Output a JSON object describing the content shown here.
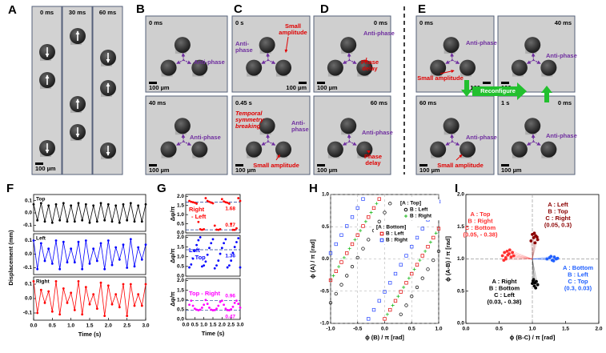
{
  "panel_labels": [
    "A",
    "B",
    "C",
    "D",
    "E",
    "F",
    "G",
    "H",
    "I"
  ],
  "panel_a": {
    "times": [
      "0 ms",
      "30 ms",
      "60 ms"
    ],
    "scale": "100 µm"
  },
  "panel_b": {
    "top": {
      "time": "0 ms",
      "phase": "Anti-phase",
      "scale": "100 µm"
    },
    "bottom": {
      "time": "40 ms",
      "phase": "Anti-phase",
      "scale": "100 µm"
    }
  },
  "panel_c": {
    "top": {
      "time": "0 s",
      "amplitude": [
        "Small",
        "amplitude"
      ],
      "phase": [
        "Anti-",
        "phase"
      ],
      "scale": "100 µm"
    },
    "bottom": {
      "time": "0.45 s",
      "note": [
        "Temporal",
        "symmetry",
        "breaking"
      ],
      "phase": [
        "Anti-",
        "phase"
      ],
      "amplitude": "Small amplitude",
      "scale": "100 µm"
    }
  },
  "panel_d": {
    "top": {
      "time": "0 ms",
      "phase": "Anti-phase",
      "delay": [
        "Phase",
        "delay"
      ],
      "scale": "100 µm"
    },
    "bottom": {
      "time": "60 ms",
      "phase": "Anti-phase",
      "delay": [
        "Phase",
        "delay"
      ],
      "scale": "100 µm"
    }
  },
  "panel_e": {
    "top_left": {
      "time": "0 ms",
      "phase": "Anti-phase",
      "amplitude": "Small amplitude",
      "scale": "100 µm"
    },
    "top_right": {
      "time": "40 ms",
      "phase": "Anti-phase",
      "scale": "100 µm"
    },
    "bottom_left": {
      "time": "60 ms",
      "phase": "Anti-phase",
      "amplitude": "Small amplitude",
      "scale": "100 µm"
    },
    "bottom_right": {
      "time": "1 s",
      "time_end": "0 ms",
      "phase": "Anti-phase",
      "scale": "100 µm"
    },
    "reconfigure": "Reconfigure"
  },
  "chart_data": [
    {
      "type": "line",
      "title": "Top",
      "x": [
        0,
        0.1,
        0.2,
        0.3,
        0.4,
        0.5,
        0.6,
        0.7,
        0.8,
        0.9,
        1,
        1.1,
        1.2,
        1.3,
        1.4,
        1.5,
        1.6,
        1.7,
        1.8,
        1.9,
        2,
        2.1,
        2.2,
        2.3,
        2.4,
        2.5,
        2.6,
        2.7,
        2.8,
        2.9,
        3
      ],
      "xlim": [
        0,
        3
      ],
      "ylim": [
        -0.15,
        0.15
      ],
      "yticks": [
        0.1,
        {
          "value": 0,
          "label": "0.0"
        },
        -0.1
      ],
      "series": [
        {
          "color": "#000000",
          "values": [
            0.07,
            -0.06,
            0.08,
            -0.07,
            0.06,
            -0.08,
            0.07,
            -0.06,
            0.08,
            -0.07,
            0.06,
            -0.07,
            0.08,
            -0.06,
            0.07,
            -0.08,
            0.06,
            -0.07,
            0.08,
            -0.06,
            0.07,
            -0.07,
            0.06,
            -0.08,
            0.07,
            -0.06,
            0.08,
            -0.07,
            0.06,
            -0.07,
            0.07
          ]
        }
      ]
    },
    {
      "type": "line",
      "title": "Left",
      "ylabel": "Displacement (mm)",
      "x": [
        0,
        0.1,
        0.2,
        0.3,
        0.4,
        0.5,
        0.6,
        0.7,
        0.8,
        0.9,
        1,
        1.1,
        1.2,
        1.3,
        1.4,
        1.5,
        1.6,
        1.7,
        1.8,
        1.9,
        2,
        2.1,
        2.2,
        2.3,
        2.4,
        2.5,
        2.6,
        2.7,
        2.8,
        2.9,
        3
      ],
      "xlim": [
        0,
        3
      ],
      "ylim": [
        -0.15,
        0.15
      ],
      "yticks": [
        0.1,
        {
          "value": 0,
          "label": "0.0"
        },
        -0.1
      ],
      "series": [
        {
          "color": "#0000ff",
          "values": [
            0.1,
            -0.11,
            0.08,
            -0.05,
            0.04,
            -0.07,
            0.1,
            -0.11,
            0.09,
            -0.06,
            0.04,
            -0.06,
            0.09,
            -0.11,
            0.1,
            -0.07,
            0.04,
            -0.05,
            0.08,
            -0.11,
            0.1,
            -0.08,
            0.05,
            -0.04,
            0.07,
            -0.1,
            0.11,
            -0.09,
            0.05,
            -0.04,
            0.07
          ]
        }
      ]
    },
    {
      "type": "line",
      "title": "Right",
      "xlabel": "Time (s)",
      "x": [
        0,
        0.1,
        0.2,
        0.3,
        0.4,
        0.5,
        0.6,
        0.7,
        0.8,
        0.9,
        1,
        1.1,
        1.2,
        1.3,
        1.4,
        1.5,
        1.6,
        1.7,
        1.8,
        1.9,
        2,
        2.1,
        2.2,
        2.3,
        2.4,
        2.5,
        2.6,
        2.7,
        2.8,
        2.9,
        3
      ],
      "xlim": [
        0,
        3
      ],
      "ylim": [
        -0.15,
        0.15
      ],
      "yticks": [
        0.1,
        {
          "value": 0,
          "label": "0.0"
        },
        -0.1
      ],
      "xticks": [
        {
          "value": 0,
          "label": "0.0"
        },
        0.5,
        {
          "value": 1,
          "label": "1.0"
        },
        1.5,
        {
          "value": 2,
          "label": "2.0"
        },
        2.5,
        {
          "value": 3,
          "label": "3.0"
        }
      ],
      "series": [
        {
          "color": "#ff0000",
          "values": [
            0.12,
            -0.1,
            0.06,
            -0.03,
            0.05,
            -0.09,
            0.12,
            -0.11,
            0.07,
            -0.03,
            0.04,
            -0.08,
            0.12,
            -0.11,
            0.08,
            -0.04,
            0.03,
            -0.07,
            0.11,
            -0.12,
            0.09,
            -0.04,
            0.03,
            -0.06,
            0.1,
            -0.12,
            0.1,
            -0.05,
            0.03,
            -0.05,
            0.1
          ]
        }
      ]
    },
    {
      "type": "scatter",
      "ylabel": "Δφ/π",
      "label_lines": [
        "Right",
        "- Left"
      ],
      "ref_lines": [
        1.68,
        0.17
      ],
      "ref_color": "#1f3a93",
      "x": [
        0.2,
        0.3,
        0.4,
        0.5,
        0.6,
        0.7,
        0.8,
        0.9,
        1,
        1.1,
        1.2,
        1.3,
        1.4,
        1.5,
        1.6,
        1.7,
        1.8,
        1.9,
        2,
        2.1,
        2.2,
        2.3,
        2.4,
        2.5,
        2.6,
        2.7,
        2.8,
        2.9,
        3
      ],
      "xlim": [
        0,
        3
      ],
      "ylim": [
        0,
        2.1
      ],
      "yticks": [
        {
          "value": 0,
          "label": "0.0"
        },
        0.5,
        {
          "value": 1,
          "label": "1.0"
        },
        1.5,
        {
          "value": 2,
          "label": "2.0"
        }
      ],
      "series": [
        {
          "color": "#ff0000",
          "values": [
            1.75,
            1.7,
            1.68,
            1.65,
            1.6,
            0.6,
            0.2,
            0.17,
            0.2,
            1.9,
            1.75,
            1.7,
            1.66,
            1.62,
            0.4,
            0.18,
            0.17,
            0.2,
            1.85,
            1.72,
            1.68,
            1.65,
            1.6,
            0.5,
            0.17,
            0.17,
            0.25,
            1.9,
            1.75
          ]
        }
      ]
    },
    {
      "type": "scatter",
      "ylabel": "Δφ/π",
      "label_lines": [
        "Left",
        "- Top"
      ],
      "ref_lines": [
        1.36
      ],
      "ref_color": "#1f3a93",
      "x": [
        0.2,
        0.3,
        0.4,
        0.5,
        0.6,
        0.7,
        0.8,
        0.9,
        1,
        1.1,
        1.2,
        1.3,
        1.4,
        1.5,
        1.6,
        1.7,
        1.8,
        1.9,
        2,
        2.1,
        2.2,
        2.3,
        2.4,
        2.5,
        2.6,
        2.7,
        2.8,
        2.9,
        3
      ],
      "xlim": [
        0,
        3
      ],
      "ylim": [
        0,
        2.1
      ],
      "yticks": [
        {
          "value": 0,
          "label": "0.0"
        },
        0.5,
        {
          "value": 1,
          "label": "1.0"
        },
        1.5,
        {
          "value": 2,
          "label": "2.0"
        }
      ],
      "series": [
        {
          "color": "#0000ff",
          "values": [
            0.45,
            0.6,
            0.9,
            1.3,
            1.6,
            1.85,
            2.0,
            0.5,
            0.55,
            0.75,
            1.1,
            1.45,
            1.7,
            1.9,
            0.4,
            0.55,
            0.8,
            1.15,
            1.45,
            1.7,
            1.9,
            0.45,
            0.55,
            0.8,
            1.2,
            1.5,
            1.75,
            1.95,
            0.45
          ]
        }
      ]
    },
    {
      "type": "scatter",
      "ylabel": "Δφ/π",
      "xlabel": "Time (s)",
      "label_lines": [
        "Top - Right"
      ],
      "ref_lines": [
        0.96,
        0.47
      ],
      "ref_color": "#1f3a93",
      "x": [
        0.2,
        0.3,
        0.4,
        0.5,
        0.6,
        0.7,
        0.8,
        0.9,
        1,
        1.1,
        1.2,
        1.3,
        1.4,
        1.5,
        1.6,
        1.7,
        1.8,
        1.9,
        2,
        2.1,
        2.2,
        2.3,
        2.4,
        2.5,
        2.6,
        2.7,
        2.8,
        2.9,
        3
      ],
      "xlim": [
        0,
        3
      ],
      "ylim": [
        0,
        2.1
      ],
      "yticks": [
        {
          "value": 0,
          "label": "0.0"
        },
        0.5,
        {
          "value": 1,
          "label": "1.0"
        },
        1.5,
        {
          "value": 2,
          "label": "2.0"
        }
      ],
      "xticks": [
        {
          "value": 0,
          "label": "0.0"
        },
        0.5,
        {
          "value": 1,
          "label": "1.0"
        },
        1.5,
        {
          "value": 2,
          "label": "2.0"
        },
        2.5,
        {
          "value": 3,
          "label": "3.0"
        }
      ],
      "series": [
        {
          "color": "#ff00ff",
          "values": [
            0.75,
            0.96,
            0.7,
            0.55,
            0.5,
            0.47,
            0.5,
            0.6,
            0.75,
            1.0,
            0.8,
            0.6,
            0.5,
            0.47,
            0.48,
            0.55,
            0.7,
            0.9,
            0.96,
            0.75,
            0.55,
            0.48,
            0.47,
            0.52,
            0.65,
            0.85,
            0.96,
            0.8,
            0.6
          ]
        }
      ]
    },
    {
      "type": "scatter",
      "xlabel": "ϕ (B) / π [rad]",
      "ylabel": "ϕ (A) / π [rad]",
      "grid": true,
      "xlim": [
        -1,
        1
      ],
      "ylim": [
        -1,
        1
      ],
      "xticks": [
        {
          "value": -1,
          "label": "-1.0"
        },
        -0.5,
        {
          "value": 0,
          "label": "0.0"
        },
        0.5,
        {
          "value": 1,
          "label": "1.0"
        }
      ],
      "yticks": [
        {
          "value": -1,
          "label": "-1.0"
        },
        -0.5,
        {
          "value": 0,
          "label": "0.0"
        },
        0.5,
        {
          "value": 1,
          "label": "1.0"
        }
      ],
      "legend_groups": [
        "[A : Top]",
        "[A : Bottom]"
      ],
      "series": [
        {
          "name": "B : Left",
          "group": 0,
          "color": "#000000",
          "marker": "open-circle",
          "x": [
            -1,
            -0.9,
            -0.8,
            -0.7,
            -0.6,
            -0.5,
            -0.4,
            -0.3,
            -0.2,
            -0.1,
            0,
            0.1,
            0.3,
            0.4,
            0.5,
            0.6,
            0.7,
            0.8,
            0.9,
            1
          ],
          "values": [
            -0.68,
            -0.54,
            -0.4,
            -0.26,
            -0.12,
            0.02,
            0.16,
            0.3,
            0.44,
            0.58,
            0.72,
            0.86,
            -0.86,
            -0.72,
            -0.58,
            -0.44,
            -0.3,
            -0.16,
            -0.02,
            0.12
          ]
        },
        {
          "name": "B : Right",
          "group": 0,
          "color": "#22bb22",
          "marker": "cross",
          "x": [
            -0.95,
            -0.85,
            -0.75,
            -0.65,
            -0.55,
            -0.45,
            -0.35,
            -0.25,
            -0.15,
            0.05,
            0.15,
            0.25,
            0.35,
            0.45,
            0.55,
            0.65,
            0.75,
            0.85,
            0.95
          ],
          "values": [
            -0.26,
            -0.12,
            0.02,
            0.16,
            0.3,
            0.44,
            0.58,
            0.72,
            0.86,
            -0.86,
            -0.72,
            -0.58,
            -0.44,
            -0.3,
            -0.16,
            -0.02,
            0.12,
            0.26,
            0.4
          ]
        },
        {
          "name": "B : Left",
          "group": 1,
          "color": "#e00000",
          "marker": "open-square",
          "x": [
            -1,
            -0.9,
            -0.8,
            -0.7,
            -0.6,
            -0.5,
            -0.4,
            -0.3,
            -0.2,
            -0.1,
            0,
            0.1,
            0.2,
            0.3,
            0.4,
            0.5,
            0.6,
            0.7,
            0.8,
            0.9,
            1
          ],
          "values": [
            -0.33,
            -0.19,
            -0.05,
            0.09,
            0.23,
            0.37,
            0.51,
            0.65,
            0.79,
            0.93,
            -0.93,
            -0.79,
            -0.65,
            -0.51,
            -0.37,
            -0.23,
            -0.09,
            0.05,
            0.19,
            0.33,
            0.47
          ]
        },
        {
          "name": "B : Right",
          "group": 1,
          "color": "#2040ff",
          "marker": "open-square",
          "x": [
            -1,
            -0.9,
            -0.8,
            -0.7,
            -0.6,
            -0.5,
            -0.4,
            -0.3,
            -0.2,
            -0.1,
            0,
            0.1,
            0.2,
            0.3,
            0.4,
            0.5,
            0.6,
            0.7,
            0.8,
            0.9,
            1
          ],
          "values": [
            0.09,
            0.23,
            0.37,
            0.51,
            0.65,
            0.79,
            0.93,
            -0.93,
            -0.79,
            -0.65,
            -0.51,
            -0.37,
            -0.23,
            -0.09,
            0.05,
            0.19,
            0.33,
            0.47,
            0.61,
            0.75,
            0.89
          ]
        }
      ]
    },
    {
      "type": "scatter",
      "xlabel": "ϕ (B-C) / π [rad]",
      "ylabel": "ϕ (A-B) / π [rad]",
      "rays": true,
      "ref_lines": [
        1
      ],
      "ref_x_lines": [
        1
      ],
      "ref_color": "#999999",
      "xlim": [
        0,
        2
      ],
      "ylim": [
        0,
        2
      ],
      "xticks": [
        {
          "value": 0,
          "label": "0.0"
        },
        0.5,
        {
          "value": 1,
          "label": "1.0"
        },
        1.5,
        {
          "value": 2,
          "label": "2.0"
        }
      ],
      "yticks": [
        {
          "value": 0,
          "label": "0.0"
        },
        0.5,
        {
          "value": 1,
          "label": "1.0"
        },
        1.5,
        {
          "value": 2,
          "label": "2.0"
        }
      ],
      "series": [
        {
          "color": "#ff3030",
          "marker": "dot",
          "labels": [
            "A : Top",
            "B : Right",
            "C : Bottom",
            "(0.05, - 0.38)"
          ],
          "x": [
            0.55,
            0.58,
            0.62,
            0.65,
            0.6,
            0.68,
            0.7,
            0.57,
            0.63,
            0.66,
            0.72,
            0.6
          ],
          "values": [
            1.05,
            1.1,
            1.12,
            1.08,
            1.0,
            1.03,
            1.1,
            0.98,
            1.06,
            1.14,
            1.05,
            1.02
          ]
        },
        {
          "color": "#8b0000",
          "marker": "dot",
          "labels": [
            "A : Left",
            "B : Top",
            "C : Right",
            "(0.05, 0.3)"
          ],
          "x": [
            0.98,
            1.02,
            1.05,
            1.08,
            1.0,
            1.04,
            1.07,
            1.03
          ],
          "values": [
            1.28,
            1.33,
            1.36,
            1.3,
            1.38,
            1.25,
            1.34,
            1.4
          ]
        },
        {
          "color": "#2060ff",
          "marker": "dot",
          "labels": [
            "A : Bottom",
            "B : Left",
            "C : Top",
            "(0.3, 0.03)"
          ],
          "x": [
            1.22,
            1.26,
            1.3,
            1.33,
            1.36,
            1.28,
            1.32,
            1.38
          ],
          "values": [
            1.0,
            1.02,
            0.98,
            1.03,
            1.0,
            1.04,
            0.97,
            1.01
          ]
        },
        {
          "color": "#000000",
          "marker": "dot",
          "labels": [
            "A : Right",
            "B : Bottom",
            "C : Left",
            "(0.03, - 0.38)"
          ],
          "x": [
            1.0,
            1.03,
            1.06,
            1.02,
            1.05,
            1.08,
            1.01,
            1.04
          ],
          "values": [
            0.62,
            0.58,
            0.65,
            0.68,
            0.55,
            0.6,
            0.66,
            0.63
          ]
        }
      ]
    }
  ]
}
